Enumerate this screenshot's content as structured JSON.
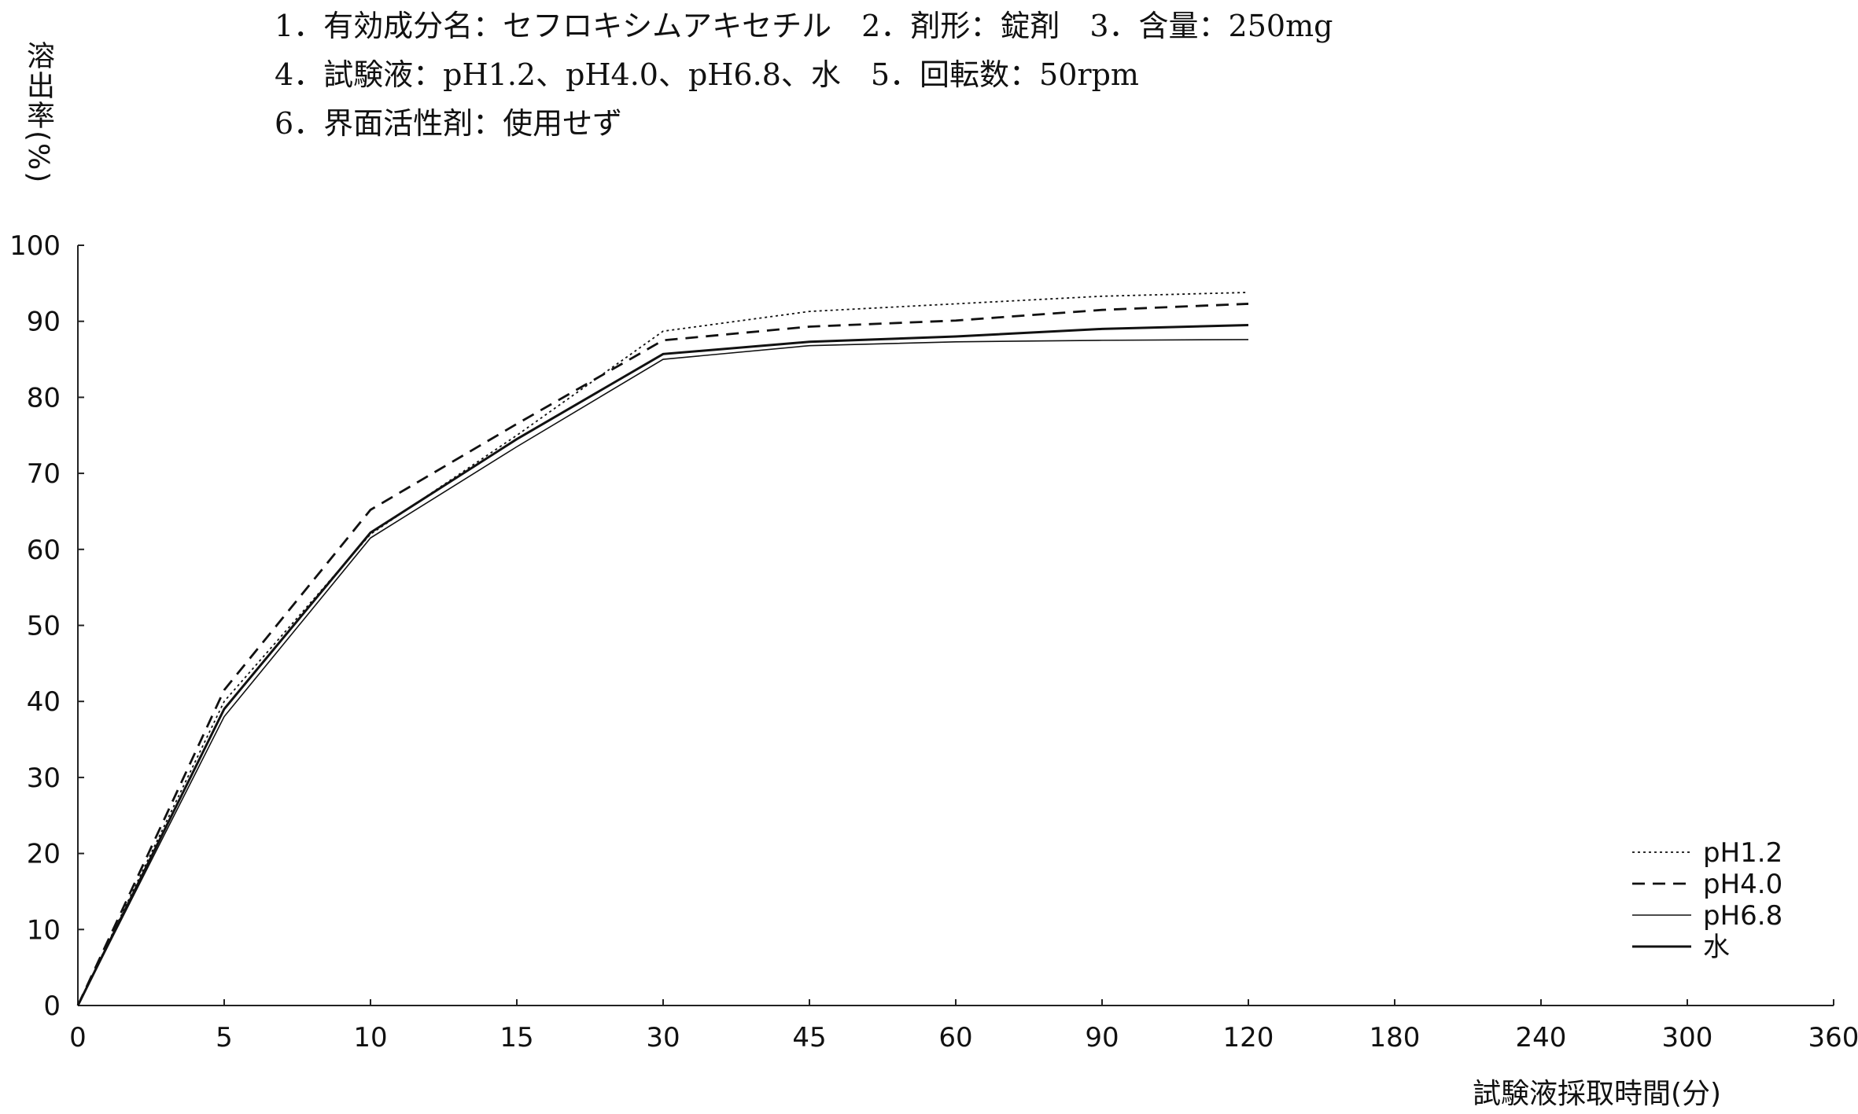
{
  "header": {
    "line1": "1．有効成分名：セフロキシムアキセチル　2．剤形：錠剤　3．含量：250mg",
    "line2": "4．試験液：pH1.2、pH4.0、pH6.8、水　5．回転数：50rpm",
    "line3": "6．界面活性剤：使用せず"
  },
  "chart_data": {
    "type": "line",
    "title": "",
    "xlabel": "試験液採取時間(分)",
    "ylabel": "溶出率(%)",
    "x_categories": [
      "0",
      "5",
      "10",
      "15",
      "30",
      "45",
      "60",
      "90",
      "120",
      "180",
      "240",
      "300",
      "360"
    ],
    "yticks": [
      "0",
      "10",
      "20",
      "30",
      "40",
      "50",
      "60",
      "70",
      "80",
      "90",
      "100"
    ],
    "ylim": [
      0,
      100
    ],
    "grid": false,
    "legend_position": "bottom-right",
    "x": [
      "0",
      "5",
      "10",
      "15",
      "30",
      "45",
      "60",
      "90",
      "120"
    ],
    "series": [
      {
        "name": "pH1.2",
        "style": "dotted",
        "values": [
          0,
          40,
          62,
          75,
          88.7,
          91.3,
          92.3,
          93.3,
          93.8
        ]
      },
      {
        "name": "pH4.0",
        "style": "dashed",
        "values": [
          0,
          41.5,
          65.2,
          76.5,
          87.5,
          89.3,
          90.1,
          91.5,
          92.3
        ]
      },
      {
        "name": "pH6.8",
        "style": "thin",
        "values": [
          0,
          38,
          61.5,
          73.5,
          85,
          86.8,
          87.3,
          87.5,
          87.6
        ]
      },
      {
        "name": "水",
        "style": "solid",
        "values": [
          0,
          39,
          62.2,
          74.5,
          85.7,
          87.3,
          88,
          89,
          89.5
        ]
      }
    ]
  }
}
